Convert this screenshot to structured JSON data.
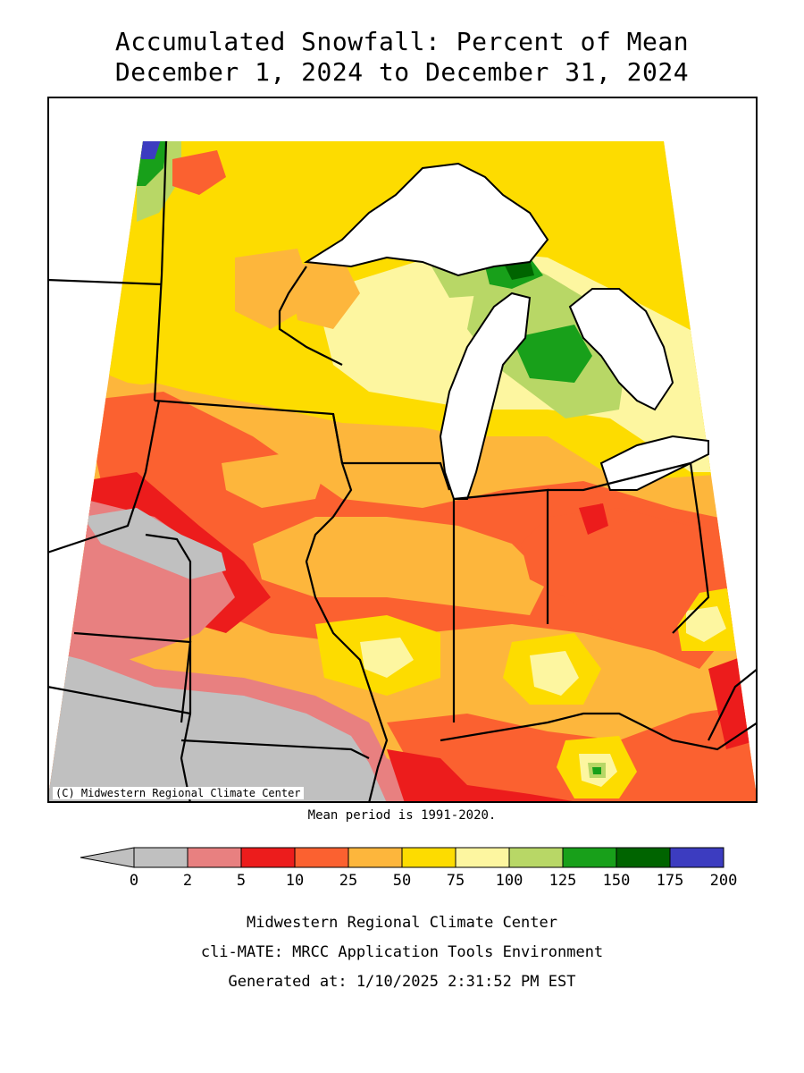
{
  "title_line1": "Accumulated Snowfall: Percent of Mean",
  "title_line2": "December 1, 2024 to December 31, 2024",
  "credit": "(C) Midwestern Regional Climate Center",
  "mean_period": "Mean period is 1991-2020.",
  "legend": {
    "ticks": [
      "0",
      "2",
      "5",
      "10",
      "25",
      "50",
      "75",
      "100",
      "125",
      "150",
      "175",
      "200"
    ],
    "colors": [
      "#c0c0c0",
      "#e88080",
      "#ec1c1c",
      "#fb6130",
      "#fdb63c",
      "#fddc00",
      "#fdf6a0",
      "#b8d766",
      "#18a01a",
      "#006400",
      "#3c3cc0"
    ]
  },
  "footer": {
    "line1": "Midwestern Regional Climate Center",
    "line2": "cli-MATE: MRCC Application Tools Environment",
    "line3": "Generated at: 1/10/2025 2:31:52 PM EST"
  }
}
